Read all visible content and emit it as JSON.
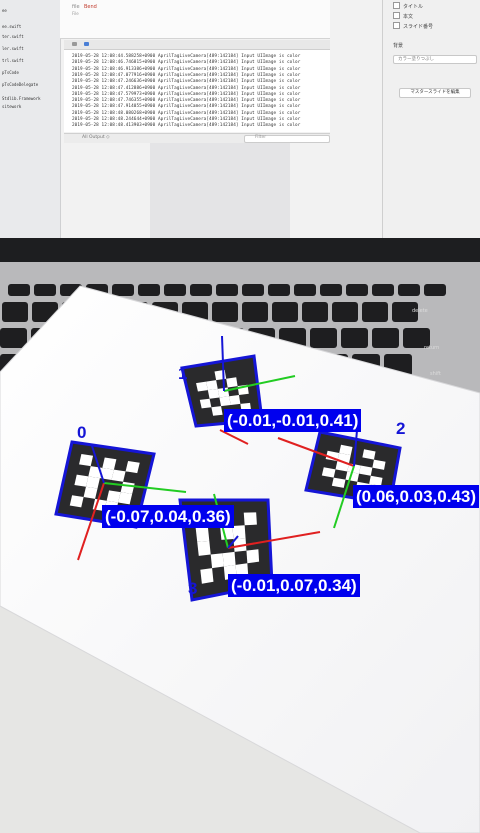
{
  "laptop": {
    "editor_title": "Bend",
    "editor_prefix": "file",
    "editor_sub": "File",
    "sidebar_entries": [
      "ee",
      "ee.swift",
      "ter.swift",
      "ler.swift",
      "trl.swift",
      "pTsCode",
      "pTsCodeDelegate",
      "",
      "Stdlib.Framework",
      "sitework"
    ],
    "console_lines": [
      "2019-05-28 12:08:44.588258+0900 AprilTagLiveCamera[489:142184] Input UIImage is color",
      "2019-05-28 12:08:46.746815+0900 AprilTagLiveCamera[489:142184] Input UIImage is color",
      "2019-05-28 12:08:46.913386+0900 AprilTagLiveCamera[489:142184] Input UIImage is color",
      "2019-05-28 12:08:47.077916+0900 AprilTagLiveCamera[489:142184] Input UIImage is color",
      "2019-05-28 12:08:47.246636+0900 AprilTagLiveCamera[489:142184] Input UIImage is color",
      "2019-05-28 12:08:47.412886+0900 AprilTagLiveCamera[489:142184] Input UIImage is color",
      "2019-05-28 12:08:47.579973+0900 AprilTagLiveCamera[489:142184] Input UIImage is color",
      "2019-05-28 12:08:47.746355+0900 AprilTagLiveCamera[489:142184] Input UIImage is color",
      "2019-05-28 12:08:47.914055+0900 AprilTagLiveCamera[489:142184] Input UIImage is color",
      "2019-05-28 12:08:48.080268+0900 AprilTagLiveCamera[489:142184] Input UIImage is color",
      "2019-05-28 12:08:48.244644+0900 AprilTagLiveCamera[489:142184] Input UIImage is color",
      "2019-05-28 12:08:48.413903+0900 AprilTagLiveCamera[489:142184] Input UIImage is color"
    ],
    "console_footer": "All Output ◇",
    "console_filter": "Filter",
    "inspector_options": [
      "タイトル",
      "本文",
      "スライド番号"
    ],
    "inspector_section": "背景",
    "inspector_select": "カラー塗りつぶし",
    "inspector_button": "マスタースライドを編集"
  },
  "keyboard": {
    "key_labels": [
      "delete",
      "return",
      "shift"
    ]
  },
  "markers": [
    {
      "id_label": "1",
      "pose": "(-0.01,-0.01,0.41)"
    },
    {
      "id_label": "0",
      "pose": "(-0.07,0.04,0.36)"
    },
    {
      "id_label": "2",
      "pose": "(0.06,0.03,0.43)"
    },
    {
      "id_label": "3",
      "pose": "(-0.01,0.07,0.34)"
    }
  ],
  "colors": {
    "marker_outline": "#1515d6",
    "label_bg": "#0000ee",
    "axis_x": "#e02020",
    "axis_y": "#22cc22",
    "axis_z": "#1515d6"
  }
}
